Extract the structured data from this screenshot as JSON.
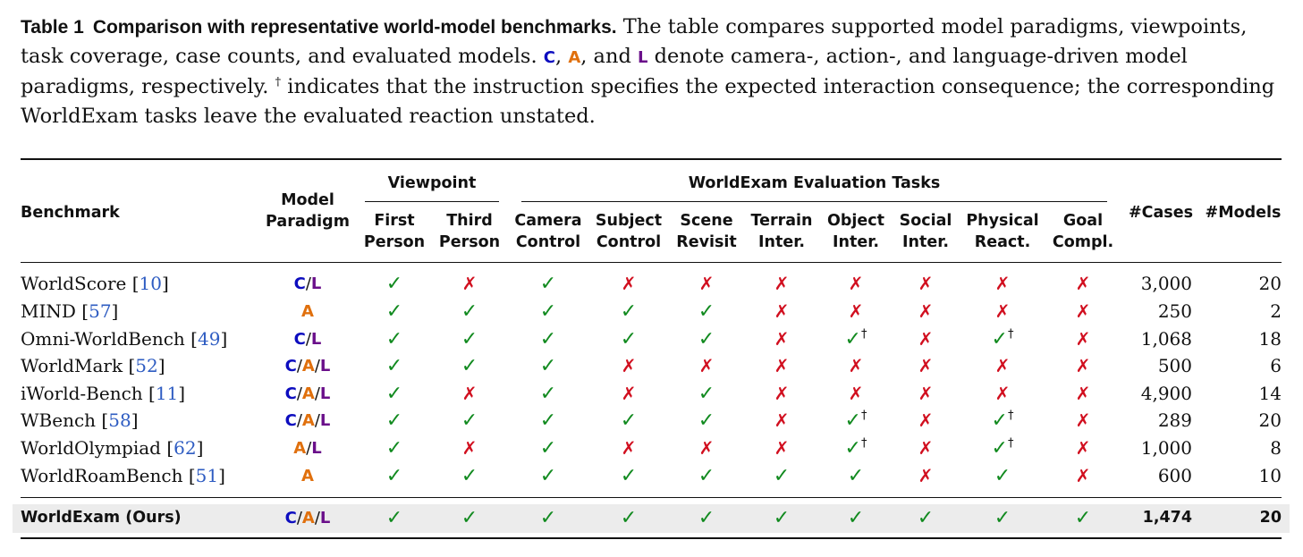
{
  "caption": {
    "label": "Table 1",
    "title": "Comparison with representative world-model benchmarks.",
    "text1": "The table compares supported model paradigms, viewpoints, task coverage, case counts, and evaluated models.",
    "p_c": "C",
    "sep1": ", ",
    "p_a": "A",
    "sep2": ", and ",
    "p_l": "L",
    "text2": "denote camera-, action-, and language-driven model paradigms, respectively.",
    "dagger": "†",
    "text3": "indicates that the instruction specifies the expected interaction consequence; the corresponding WorldExam tasks leave the evaluated reaction unstated."
  },
  "headers": {
    "benchmark": "Benchmark",
    "model_paradigm_1": "Model",
    "model_paradigm_2": "Paradigm",
    "viewpoint": "Viewpoint",
    "tasks_group": "WorldExam Evaluation Tasks",
    "first_1": "First",
    "first_2": "Person",
    "third_1": "Third",
    "third_2": "Person",
    "camera_1": "Camera",
    "camera_2": "Control",
    "subject_1": "Subject",
    "subject_2": "Control",
    "scene_1": "Scene",
    "scene_2": "Revisit",
    "terrain_1": "Terrain",
    "terrain_2": "Inter.",
    "object_1": "Object",
    "object_2": "Inter.",
    "social_1": "Social",
    "social_2": "Inter.",
    "physical_1": "Physical",
    "physical_2": "React.",
    "goal_1": "Goal",
    "goal_2": "Compl.",
    "cases": "#Cases",
    "models": "#Models"
  },
  "symbols": {
    "check": "✓",
    "cross": "✗",
    "dagger": "†",
    "slash": "/"
  },
  "colors": {
    "camera": "#0d0dbf",
    "action": "#e0700d",
    "language": "#6a0f8a",
    "check": "#118a1f",
    "cross": "#d10f1f",
    "ref": "#2e5cc2",
    "highlight": "#ececec"
  },
  "rows": [
    {
      "name": "WorldScore",
      "ref": "10",
      "paradigm": [
        "C",
        "L"
      ],
      "marks": [
        "y",
        "n",
        "y",
        "n",
        "n",
        "n",
        "n",
        "n",
        "n",
        "n"
      ],
      "cases": "3,000",
      "models": "20"
    },
    {
      "name": "MIND",
      "ref": "57",
      "paradigm": [
        "A"
      ],
      "marks": [
        "y",
        "y",
        "y",
        "y",
        "y",
        "n",
        "n",
        "n",
        "n",
        "n"
      ],
      "cases": "250",
      "models": "2"
    },
    {
      "name": "Omni-WorldBench",
      "ref": "49",
      "paradigm": [
        "C",
        "L"
      ],
      "marks": [
        "y",
        "y",
        "y",
        "y",
        "y",
        "n",
        "yd",
        "n",
        "yd",
        "n"
      ],
      "cases": "1,068",
      "models": "18"
    },
    {
      "name": "WorldMark",
      "ref": "52",
      "paradigm": [
        "C",
        "A",
        "L"
      ],
      "marks": [
        "y",
        "y",
        "y",
        "n",
        "n",
        "n",
        "n",
        "n",
        "n",
        "n"
      ],
      "cases": "500",
      "models": "6"
    },
    {
      "name": "iWorld-Bench",
      "ref": "11",
      "paradigm": [
        "C",
        "A",
        "L"
      ],
      "marks": [
        "y",
        "n",
        "y",
        "n",
        "y",
        "n",
        "n",
        "n",
        "n",
        "n"
      ],
      "cases": "4,900",
      "models": "14"
    },
    {
      "name": "WBench",
      "ref": "58",
      "paradigm": [
        "C",
        "A",
        "L"
      ],
      "marks": [
        "y",
        "y",
        "y",
        "y",
        "y",
        "n",
        "yd",
        "n",
        "yd",
        "n"
      ],
      "cases": "289",
      "models": "20"
    },
    {
      "name": "WorldOlympiad",
      "ref": "62",
      "paradigm": [
        "A",
        "L"
      ],
      "marks": [
        "y",
        "n",
        "y",
        "n",
        "n",
        "n",
        "yd",
        "n",
        "yd",
        "n"
      ],
      "cases": "1,000",
      "models": "8"
    },
    {
      "name": "WorldRoamBench",
      "ref": "51",
      "paradigm": [
        "A"
      ],
      "marks": [
        "y",
        "y",
        "y",
        "y",
        "y",
        "y",
        "y",
        "n",
        "y",
        "n"
      ],
      "cases": "600",
      "models": "10"
    }
  ],
  "ours": {
    "name": "WorldExam (Ours)",
    "paradigm": [
      "C",
      "A",
      "L"
    ],
    "marks": [
      "y",
      "y",
      "y",
      "y",
      "y",
      "y",
      "y",
      "y",
      "y",
      "y"
    ],
    "cases": "1,474",
    "models": "20"
  }
}
